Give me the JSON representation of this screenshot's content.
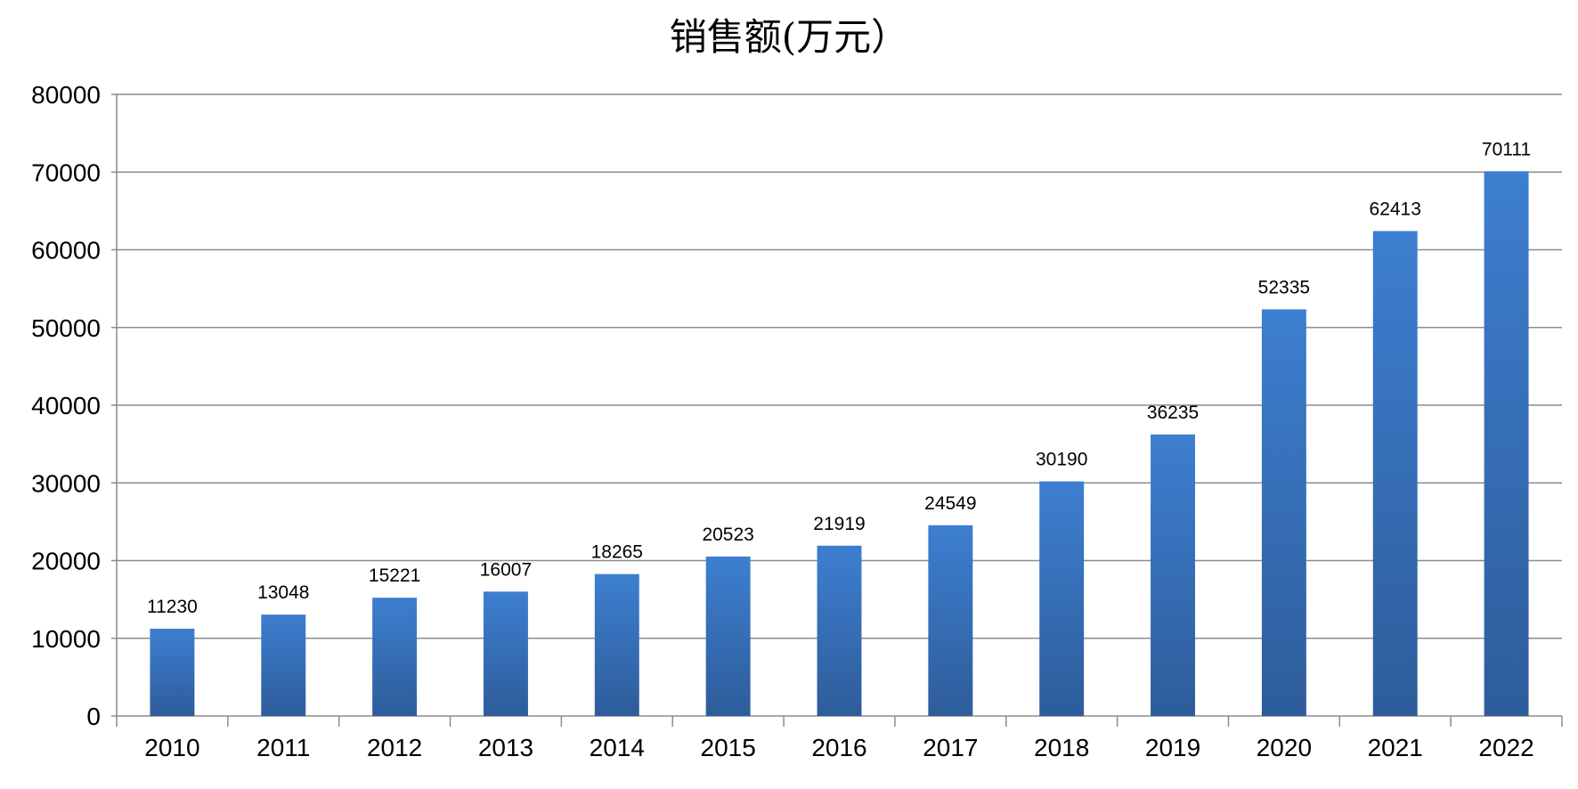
{
  "chart_data": {
    "type": "bar",
    "title": "销售额(万元）",
    "xlabel": "",
    "ylabel": "",
    "categories": [
      "2010",
      "2011",
      "2012",
      "2013",
      "2014",
      "2015",
      "2016",
      "2017",
      "2018",
      "2019",
      "2020",
      "2021",
      "2022"
    ],
    "series": [
      {
        "values": [
          11230,
          13048,
          15221,
          16007,
          18265,
          20523,
          21919,
          24549,
          30190,
          36235,
          52335,
          62413,
          70111
        ]
      }
    ],
    "ylim": [
      0,
      80000
    ],
    "yticks": [
      0,
      10000,
      20000,
      30000,
      40000,
      50000,
      60000,
      70000,
      80000
    ],
    "data_labels": [
      "11230",
      "13048",
      "15221",
      "16007",
      "18265",
      "20523",
      "21919",
      "24549",
      "30190",
      "36235",
      "52335",
      "62413",
      "70111"
    ],
    "grid": true,
    "legend": "none",
    "colors": {
      "bar_top": "#3d7fd0",
      "bar_bottom": "#2e5c9a",
      "grid": "#8c8c8c"
    }
  }
}
